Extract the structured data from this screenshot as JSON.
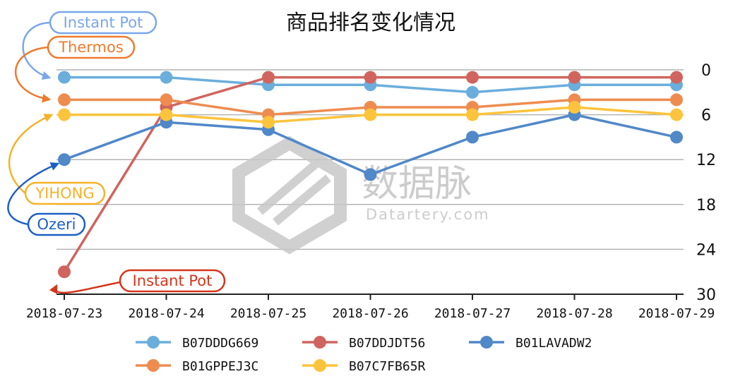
{
  "chart_data": {
    "type": "line",
    "title": "商品排名变化情况",
    "categories": [
      "2018-07-23",
      "2018-07-24",
      "2018-07-25",
      "2018-07-26",
      "2018-07-27",
      "2018-07-28",
      "2018-07-29"
    ],
    "y_axis": {
      "position": "right",
      "inverted": true,
      "min": 0,
      "max": 30,
      "ticks": [
        0,
        6,
        12,
        18,
        24,
        30
      ]
    },
    "grid": true,
    "legend_position": "bottom",
    "series": [
      {
        "name": "B07DDDG669",
        "color": "#6aaedc",
        "values": [
          1,
          1,
          2,
          2,
          3,
          2,
          2
        ]
      },
      {
        "name": "B07DDJDT56",
        "color": "#d0645e",
        "values": [
          27,
          5,
          1,
          1,
          1,
          1,
          1
        ]
      },
      {
        "name": "B01LAVADW2",
        "color": "#5088c8",
        "values": [
          12,
          7,
          8,
          14,
          9,
          6,
          9
        ]
      },
      {
        "name": "B01GPPEJ3C",
        "color": "#ee8c50",
        "values": [
          4,
          4,
          6,
          5,
          5,
          4,
          4
        ]
      },
      {
        "name": "B07C7FB65R",
        "color": "#fcc43c",
        "values": [
          6,
          6,
          7,
          6,
          6,
          5,
          6
        ]
      }
    ],
    "annotations": [
      {
        "text": "Instant Pot",
        "series": "B07DDDG669",
        "color": "#7aa7ea"
      },
      {
        "text": "Thermos",
        "series": "B01GPPEJ3C",
        "color": "#ee7a2e"
      },
      {
        "text": "YIHONG",
        "series": "B07C7FB65R",
        "color": "#f6b228"
      },
      {
        "text": "Ozeri",
        "series": "B01LAVADW2",
        "color": "#1d5fc4"
      },
      {
        "text": "Instant Pot",
        "series": "B07DDJDT56",
        "color": "#d4351c"
      }
    ]
  },
  "watermark": {
    "text": "数据脉",
    "subtext": "Datartery.com"
  }
}
